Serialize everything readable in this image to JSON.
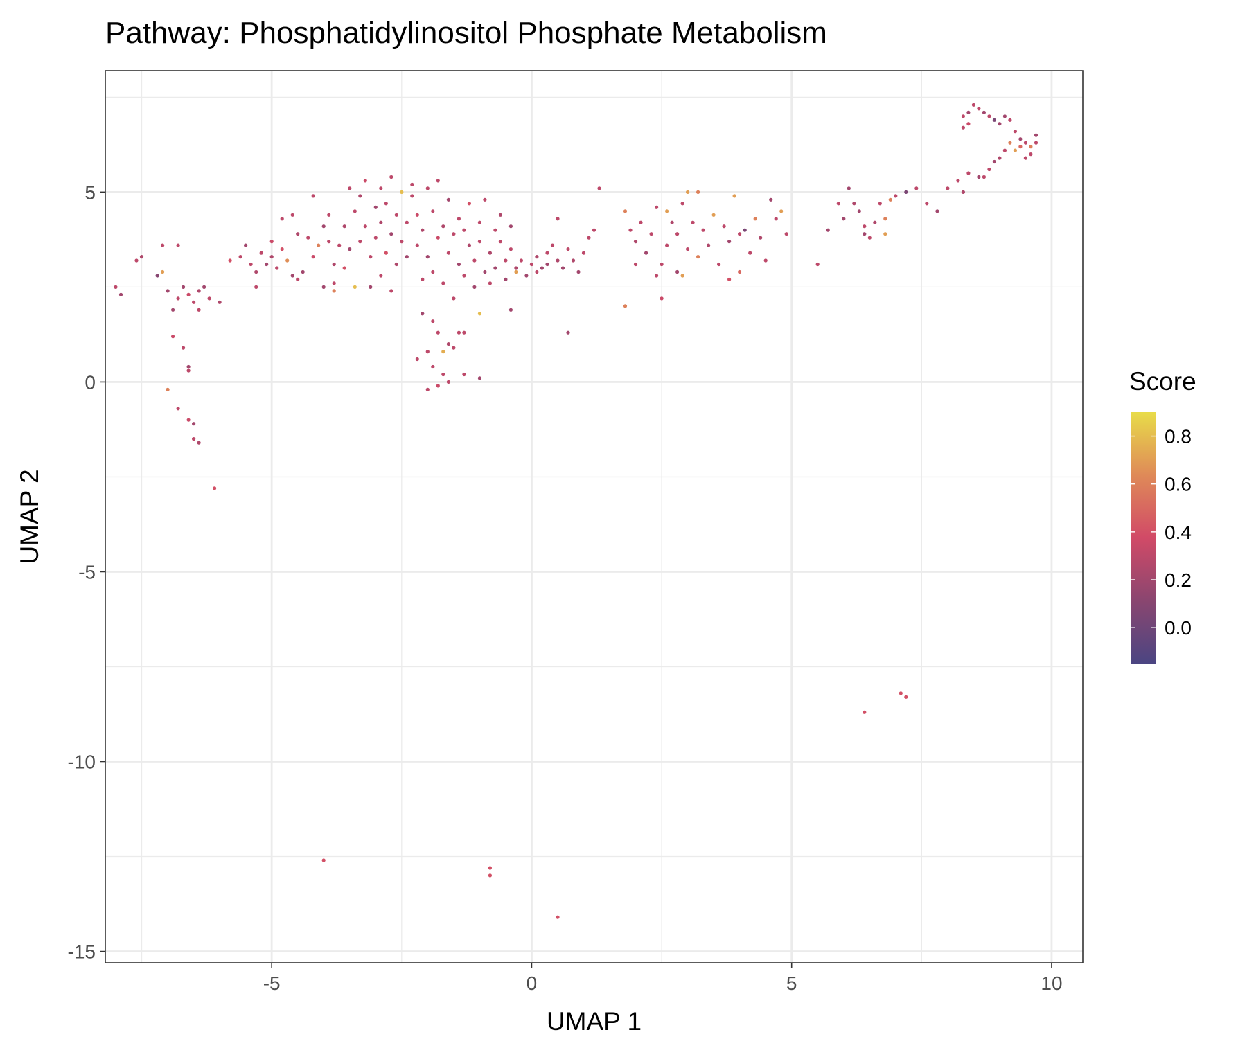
{
  "chart_data": {
    "type": "scatter",
    "title": "Pathway: Phosphatidylinositol Phosphate Metabolism",
    "xlabel": "UMAP 1",
    "ylabel": "UMAP 2",
    "xlim": [
      -8.2,
      10.6
    ],
    "ylim": [
      -15.3,
      8.2
    ],
    "x_ticks": [
      -5,
      0,
      5,
      10
    ],
    "x_tick_labels": [
      "-5",
      "0",
      "5",
      "10"
    ],
    "y_ticks": [
      -15,
      -10,
      -5,
      0,
      5
    ],
    "y_tick_labels": [
      "-15",
      "-10",
      "-5",
      "0",
      "5"
    ],
    "grid": true,
    "legend": {
      "title": "Score",
      "type": "colorbar",
      "placement": "right",
      "range": [
        -0.15,
        0.9
      ],
      "ticks": [
        0.0,
        0.2,
        0.4,
        0.6,
        0.8
      ],
      "tick_labels": [
        "0.0",
        "0.2",
        "0.4",
        "0.6",
        "0.8"
      ],
      "colors": [
        "#4b4582",
        "#8a4670",
        "#d14a67",
        "#df8a58",
        "#e8dc49"
      ]
    },
    "points": [
      [
        -8.0,
        2.5,
        0.3
      ],
      [
        -7.9,
        2.3,
        0.2
      ],
      [
        -7.6,
        3.2,
        0.3
      ],
      [
        -7.5,
        3.3,
        0.25
      ],
      [
        -7.2,
        2.8,
        0.1
      ],
      [
        -7.1,
        2.9,
        0.7
      ],
      [
        -7.1,
        3.6,
        0.3
      ],
      [
        -7.0,
        2.4,
        0.2
      ],
      [
        -6.9,
        1.9,
        0.2
      ],
      [
        -6.8,
        2.2,
        0.3
      ],
      [
        -6.7,
        2.5,
        0.2
      ],
      [
        -6.6,
        2.3,
        0.35
      ],
      [
        -6.5,
        2.1,
        0.3
      ],
      [
        -6.4,
        2.4,
        0.25
      ],
      [
        -6.4,
        1.9,
        0.3
      ],
      [
        -6.3,
        2.5,
        0.2
      ],
      [
        -6.2,
        2.2,
        0.3
      ],
      [
        -6.0,
        2.1,
        0.25
      ],
      [
        -6.8,
        3.6,
        0.3
      ],
      [
        -6.9,
        1.2,
        0.35
      ],
      [
        -6.7,
        0.9,
        0.3
      ],
      [
        -6.6,
        0.4,
        0.2
      ],
      [
        -6.6,
        0.3,
        0.3
      ],
      [
        -7.0,
        -0.2,
        0.6
      ],
      [
        -6.8,
        -0.7,
        0.3
      ],
      [
        -6.6,
        -1.0,
        0.35
      ],
      [
        -6.5,
        -1.1,
        0.2
      ],
      [
        -6.5,
        -1.5,
        0.3
      ],
      [
        -6.4,
        -1.6,
        0.25
      ],
      [
        -6.1,
        -2.8,
        0.4
      ],
      [
        -5.8,
        3.2,
        0.4
      ],
      [
        -5.6,
        3.3,
        0.3
      ],
      [
        -5.5,
        3.6,
        0.2
      ],
      [
        -5.4,
        3.1,
        0.3
      ],
      [
        -5.3,
        2.9,
        0.25
      ],
      [
        -5.3,
        2.5,
        0.3
      ],
      [
        -5.2,
        3.4,
        0.3
      ],
      [
        -5.1,
        3.1,
        0.2
      ],
      [
        -5.0,
        3.7,
        0.35
      ],
      [
        -5.0,
        3.3,
        0.25
      ],
      [
        -4.9,
        3.0,
        0.3
      ],
      [
        -4.8,
        4.3,
        0.3
      ],
      [
        -4.8,
        3.5,
        0.4
      ],
      [
        -4.7,
        3.2,
        0.65
      ],
      [
        -4.6,
        4.4,
        0.3
      ],
      [
        -4.6,
        2.8,
        0.2
      ],
      [
        -4.5,
        3.9,
        0.25
      ],
      [
        -4.5,
        2.7,
        0.3
      ],
      [
        -4.4,
        2.9,
        0.2
      ],
      [
        -4.3,
        3.8,
        0.3
      ],
      [
        -4.2,
        4.9,
        0.3
      ],
      [
        -4.2,
        3.3,
        0.35
      ],
      [
        -4.1,
        3.6,
        0.6
      ],
      [
        -4.0,
        4.1,
        0.2
      ],
      [
        -4.0,
        2.5,
        0.2
      ],
      [
        -3.9,
        3.7,
        0.3
      ],
      [
        -3.9,
        4.4,
        0.3
      ],
      [
        -3.8,
        3.1,
        0.25
      ],
      [
        -3.8,
        2.6,
        0.3
      ],
      [
        -3.8,
        2.4,
        0.6
      ],
      [
        -3.7,
        3.6,
        0.3
      ],
      [
        -3.6,
        4.1,
        0.25
      ],
      [
        -3.6,
        3.0,
        0.4
      ],
      [
        -3.5,
        5.1,
        0.3
      ],
      [
        -3.5,
        3.5,
        0.2
      ],
      [
        -3.4,
        4.5,
        0.3
      ],
      [
        -3.4,
        2.5,
        0.8
      ],
      [
        -3.3,
        3.7,
        0.3
      ],
      [
        -3.3,
        4.9,
        0.25
      ],
      [
        -3.2,
        4.1,
        0.3
      ],
      [
        -3.2,
        5.3,
        0.35
      ],
      [
        -3.1,
        3.3,
        0.3
      ],
      [
        -3.1,
        2.5,
        0.2
      ],
      [
        -3.0,
        4.6,
        0.2
      ],
      [
        -3.0,
        3.8,
        0.3
      ],
      [
        -2.9,
        5.1,
        0.3
      ],
      [
        -2.9,
        4.2,
        0.25
      ],
      [
        -2.9,
        2.8,
        0.3
      ],
      [
        -2.8,
        3.4,
        0.4
      ],
      [
        -2.8,
        4.7,
        0.3
      ],
      [
        -2.7,
        5.4,
        0.3
      ],
      [
        -2.7,
        3.9,
        0.2
      ],
      [
        -2.7,
        2.4,
        0.3
      ],
      [
        -2.6,
        4.4,
        0.3
      ],
      [
        -2.6,
        3.1,
        0.25
      ],
      [
        -2.5,
        5.0,
        0.8
      ],
      [
        -2.5,
        3.7,
        0.3
      ],
      [
        -2.4,
        4.2,
        0.3
      ],
      [
        -2.4,
        3.3,
        0.2
      ],
      [
        -2.3,
        4.9,
        0.3
      ],
      [
        -2.3,
        5.2,
        0.3
      ],
      [
        -2.2,
        4.4,
        0.35
      ],
      [
        -2.2,
        3.6,
        0.3
      ],
      [
        -2.1,
        2.7,
        0.3
      ],
      [
        -2.1,
        4.0,
        0.25
      ],
      [
        -2.0,
        5.1,
        0.3
      ],
      [
        -2.0,
        3.3,
        0.2
      ],
      [
        -1.9,
        4.5,
        0.3
      ],
      [
        -1.9,
        2.9,
        0.3
      ],
      [
        -1.8,
        3.8,
        0.35
      ],
      [
        -1.8,
        5.3,
        0.3
      ],
      [
        -1.7,
        4.1,
        0.25
      ],
      [
        -1.7,
        2.6,
        0.3
      ],
      [
        -1.6,
        3.4,
        0.3
      ],
      [
        -1.6,
        4.8,
        0.2
      ],
      [
        -1.5,
        3.9,
        0.3
      ],
      [
        -1.5,
        2.2,
        0.3
      ],
      [
        -1.4,
        4.3,
        0.3
      ],
      [
        -1.4,
        3.1,
        0.2
      ],
      [
        -1.3,
        2.8,
        0.3
      ],
      [
        -1.3,
        4.0,
        0.3
      ],
      [
        -1.2,
        3.6,
        0.25
      ],
      [
        -1.2,
        4.7,
        0.4
      ],
      [
        -1.1,
        3.2,
        0.3
      ],
      [
        -1.1,
        2.5,
        0.2
      ],
      [
        -1.0,
        4.2,
        0.3
      ],
      [
        -1.0,
        3.7,
        0.3
      ],
      [
        -0.9,
        2.9,
        0.2
      ],
      [
        -0.9,
        4.8,
        0.3
      ],
      [
        -0.8,
        3.4,
        0.25
      ],
      [
        -0.8,
        2.6,
        0.3
      ],
      [
        -0.7,
        4.0,
        0.3
      ],
      [
        -0.7,
        3.0,
        0.2
      ],
      [
        -0.6,
        3.7,
        0.3
      ],
      [
        -0.6,
        4.4,
        0.25
      ],
      [
        -0.5,
        3.2,
        0.3
      ],
      [
        -0.5,
        2.7,
        0.2
      ],
      [
        -0.4,
        3.5,
        0.3
      ],
      [
        -0.4,
        4.1,
        0.2
      ],
      [
        -0.3,
        3.0,
        0.25
      ],
      [
        -0.3,
        2.9,
        0.7
      ],
      [
        -0.2,
        3.2,
        0.3
      ],
      [
        -0.1,
        2.8,
        0.2
      ],
      [
        0.0,
        3.1,
        0.3
      ],
      [
        0.1,
        3.3,
        0.25
      ],
      [
        0.1,
        2.9,
        0.3
      ],
      [
        0.2,
        3.0,
        0.2
      ],
      [
        0.3,
        3.4,
        0.3
      ],
      [
        0.3,
        3.1,
        0.2
      ],
      [
        0.4,
        3.6,
        0.3
      ],
      [
        0.5,
        3.2,
        0.25
      ],
      [
        0.5,
        4.3,
        0.3
      ],
      [
        0.6,
        3.0,
        0.2
      ],
      [
        0.7,
        3.5,
        0.3
      ],
      [
        0.8,
        3.2,
        0.25
      ],
      [
        0.9,
        2.9,
        0.2
      ],
      [
        1.0,
        3.4,
        0.3
      ],
      [
        1.1,
        3.8,
        0.3
      ],
      [
        1.2,
        4.0,
        0.3
      ],
      [
        0.7,
        1.3,
        0.2
      ],
      [
        -0.4,
        1.9,
        0.2
      ],
      [
        -1.0,
        1.8,
        0.8
      ],
      [
        -1.3,
        1.3,
        0.3
      ],
      [
        -1.4,
        1.3,
        0.3
      ],
      [
        -1.5,
        0.9,
        0.3
      ],
      [
        -1.6,
        1.0,
        0.25
      ],
      [
        -1.7,
        0.8,
        0.75
      ],
      [
        -1.8,
        1.3,
        0.3
      ],
      [
        -1.9,
        1.6,
        0.3
      ],
      [
        -1.9,
        0.4,
        0.3
      ],
      [
        -2.0,
        0.8,
        0.3
      ],
      [
        -2.1,
        1.8,
        0.2
      ],
      [
        -2.2,
        0.6,
        0.3
      ],
      [
        -1.7,
        0.2,
        0.3
      ],
      [
        -1.8,
        -0.1,
        0.35
      ],
      [
        -1.6,
        0.0,
        0.3
      ],
      [
        -2.0,
        -0.2,
        0.3
      ],
      [
        -1.0,
        0.1,
        0.2
      ],
      [
        -1.3,
        0.2,
        0.3
      ],
      [
        1.8,
        2.0,
        0.6
      ],
      [
        1.8,
        4.5,
        0.6
      ],
      [
        1.9,
        4.0,
        0.3
      ],
      [
        2.0,
        3.7,
        0.25
      ],
      [
        2.1,
        4.2,
        0.3
      ],
      [
        2.2,
        3.4,
        0.2
      ],
      [
        2.3,
        3.9,
        0.3
      ],
      [
        2.4,
        4.6,
        0.3
      ],
      [
        2.5,
        3.1,
        0.3
      ],
      [
        2.5,
        2.2,
        0.35
      ],
      [
        2.6,
        4.5,
        0.7
      ],
      [
        2.6,
        3.6,
        0.3
      ],
      [
        2.7,
        4.2,
        0.25
      ],
      [
        2.8,
        3.9,
        0.3
      ],
      [
        2.8,
        2.9,
        0.2
      ],
      [
        2.9,
        4.7,
        0.3
      ],
      [
        2.9,
        2.8,
        0.7
      ],
      [
        3.0,
        3.5,
        0.3
      ],
      [
        3.0,
        5.0,
        0.7
      ],
      [
        3.1,
        4.2,
        0.3
      ],
      [
        3.2,
        3.3,
        0.6
      ],
      [
        3.2,
        5.0,
        0.6
      ],
      [
        3.3,
        4.0,
        0.3
      ],
      [
        3.4,
        3.6,
        0.25
      ],
      [
        3.5,
        4.4,
        0.7
      ],
      [
        3.6,
        3.1,
        0.3
      ],
      [
        3.7,
        4.1,
        0.3
      ],
      [
        3.8,
        2.7,
        0.4
      ],
      [
        3.8,
        3.7,
        0.2
      ],
      [
        3.9,
        4.9,
        0.7
      ],
      [
        4.0,
        3.9,
        0.3
      ],
      [
        4.0,
        2.9,
        0.5
      ],
      [
        4.1,
        4.0,
        0.05
      ],
      [
        4.2,
        3.4,
        0.3
      ],
      [
        4.3,
        4.3,
        0.6
      ],
      [
        4.4,
        3.8,
        0.25
      ],
      [
        4.5,
        3.2,
        0.3
      ],
      [
        4.6,
        4.8,
        0.2
      ],
      [
        4.7,
        4.3,
        0.3
      ],
      [
        4.8,
        4.5,
        0.7
      ],
      [
        4.9,
        3.9,
        0.3
      ],
      [
        1.3,
        5.1,
        0.3
      ],
      [
        2.0,
        3.1,
        0.3
      ],
      [
        2.4,
        2.8,
        0.3
      ],
      [
        5.5,
        3.1,
        0.3
      ],
      [
        5.7,
        4.0,
        0.2
      ],
      [
        5.9,
        4.7,
        0.3
      ],
      [
        6.0,
        4.3,
        0.2
      ],
      [
        6.1,
        5.1,
        0.2
      ],
      [
        6.2,
        4.7,
        0.25
      ],
      [
        6.3,
        4.5,
        0.2
      ],
      [
        6.4,
        4.1,
        0.3
      ],
      [
        6.4,
        3.9,
        0.2
      ],
      [
        6.5,
        3.8,
        0.3
      ],
      [
        6.6,
        4.2,
        0.25
      ],
      [
        6.7,
        4.7,
        0.3
      ],
      [
        6.8,
        3.9,
        0.7
      ],
      [
        6.8,
        4.3,
        0.6
      ],
      [
        6.9,
        4.8,
        0.6
      ],
      [
        7.0,
        4.9,
        0.3
      ],
      [
        7.2,
        5.0,
        0.05
      ],
      [
        7.4,
        5.1,
        0.3
      ],
      [
        7.6,
        4.7,
        0.3
      ],
      [
        7.8,
        4.5,
        0.2
      ],
      [
        8.0,
        5.1,
        0.3
      ],
      [
        8.2,
        5.3,
        0.3
      ],
      [
        8.3,
        5.0,
        0.25
      ],
      [
        8.4,
        5.5,
        0.3
      ],
      [
        8.6,
        5.4,
        0.2
      ],
      [
        8.7,
        5.4,
        0.3
      ],
      [
        8.8,
        5.6,
        0.3
      ],
      [
        8.9,
        5.8,
        0.2
      ],
      [
        9.0,
        5.9,
        0.25
      ],
      [
        9.1,
        6.1,
        0.3
      ],
      [
        9.2,
        6.3,
        0.6
      ],
      [
        9.3,
        6.1,
        0.7
      ],
      [
        9.4,
        6.4,
        0.2
      ],
      [
        9.5,
        6.3,
        0.3
      ],
      [
        9.6,
        6.2,
        0.6
      ],
      [
        9.7,
        6.5,
        0.2
      ],
      [
        9.7,
        6.3,
        0.3
      ],
      [
        9.6,
        6.0,
        0.3
      ],
      [
        9.5,
        5.9,
        0.3
      ],
      [
        9.4,
        6.2,
        0.5
      ],
      [
        9.3,
        6.6,
        0.3
      ],
      [
        9.2,
        6.9,
        0.3
      ],
      [
        9.1,
        7.0,
        0.2
      ],
      [
        9.0,
        6.8,
        0.2
      ],
      [
        8.9,
        6.9,
        0.05
      ],
      [
        8.8,
        7.0,
        0.3
      ],
      [
        8.7,
        7.1,
        0.2
      ],
      [
        8.6,
        7.2,
        0.3
      ],
      [
        8.5,
        7.3,
        0.3
      ],
      [
        8.4,
        7.1,
        0.2
      ],
      [
        8.3,
        7.0,
        0.3
      ],
      [
        8.4,
        6.8,
        0.35
      ],
      [
        8.3,
        6.7,
        0.3
      ],
      [
        6.4,
        -8.7,
        0.4
      ],
      [
        7.1,
        -8.2,
        0.4
      ],
      [
        7.2,
        -8.3,
        0.4
      ],
      [
        -4.0,
        -12.6,
        0.4
      ],
      [
        -0.8,
        -12.8,
        0.4
      ],
      [
        -0.8,
        -13.0,
        0.4
      ],
      [
        0.5,
        -14.1,
        0.4
      ]
    ]
  }
}
